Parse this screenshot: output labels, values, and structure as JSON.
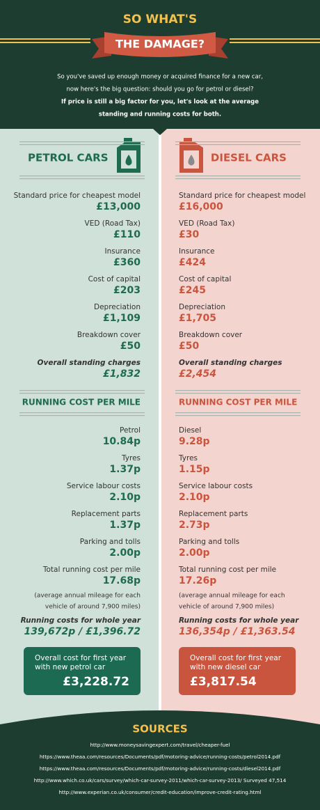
{
  "header": {
    "title_top": "SO WHAT'S",
    "title_banner": "THE DAMAGE?",
    "intro": [
      "So you've saved up enough money or acquired finance for a new car,",
      "now here's the big question: should you go for petrol or diesel?",
      "If price is still a big factor for you, let's look at the average",
      "standing and running costs for both."
    ]
  },
  "columns": [
    {
      "title": "PETROL CARS",
      "standing": [
        {
          "label": "Standard price for cheapest model",
          "value": "£13,000"
        },
        {
          "label": "VED (Road Tax)",
          "value": "£110"
        },
        {
          "label": "Insurance",
          "value": "£360"
        },
        {
          "label": "Cost of capital",
          "value": "£203"
        },
        {
          "label": "Depreciation",
          "value": "£1,109"
        },
        {
          "label": "Breakdown cover",
          "value": "£50"
        }
      ],
      "standing_total": {
        "label": "Overall standing charges",
        "value": "£1,832"
      },
      "running_title": "RUNNING COST PER MILE",
      "running": [
        {
          "label": "Petrol",
          "value": "10.84p"
        },
        {
          "label": "Tyres",
          "value": "1.37p"
        },
        {
          "label": "Service labour costs",
          "value": "2.10p"
        },
        {
          "label": "Replacement parts",
          "value": "1.37p"
        },
        {
          "label": "Parking and tolls",
          "value": "2.00p"
        },
        {
          "label": "Total running cost per mile",
          "value": "17.68p"
        }
      ],
      "note": [
        "(average annual mileage for each",
        "vehicle of around 7,900 miles)"
      ],
      "annual": {
        "label": "Running costs for whole year",
        "value": "139,672p / £1,396.72"
      },
      "overall": {
        "label": [
          "Overall cost for first year",
          "with new petrol car"
        ],
        "value": "£3,228.72"
      }
    },
    {
      "title": "DIESEL CARS",
      "standing": [
        {
          "label": "Standard price for cheapest model",
          "value": "£16,000"
        },
        {
          "label": "VED (Road Tax)",
          "value": "£30"
        },
        {
          "label": "Insurance",
          "value": "£424"
        },
        {
          "label": "Cost of capital",
          "value": "£245"
        },
        {
          "label": "Depreciation",
          "value": "£1,705"
        },
        {
          "label": "Breakdown cover",
          "value": "£50"
        }
      ],
      "standing_total": {
        "label": "Overall standing charges",
        "value": "£2,454"
      },
      "running_title": "RUNNING COST PER MILE",
      "running": [
        {
          "label": "Diesel",
          "value": "9.28p"
        },
        {
          "label": "Tyres",
          "value": "1.15p"
        },
        {
          "label": "Service labour costs",
          "value": "2.10p"
        },
        {
          "label": "Replacement parts",
          "value": "2.73p"
        },
        {
          "label": "Parking and tolls",
          "value": "2.00p"
        },
        {
          "label": "Total running cost per mile",
          "value": "17.26p"
        }
      ],
      "note": [
        "(average annual mileage for each",
        "vehicle of around 7,900 miles)"
      ],
      "annual": {
        "label": "Running costs for whole year",
        "value": "136,354p / £1,363.54"
      },
      "overall": {
        "label": [
          "Overall cost for first year",
          "with new diesel car"
        ],
        "value": "£3,817.54"
      }
    }
  ],
  "sources": {
    "title": "SOURCES",
    "links": [
      "http://www.moneysavingexpert.com/travel/cheaper-fuel",
      "https://www.theaa.com/resources/Documents/pdf/motoring-advice/running-costs/petrol2014.pdf",
      "https://www.theaa.com/resources/Documents/pdf/motoring-advice/running-costs/diesel2014.pdf",
      "http://www.which.co.uk/cars/survey/which-car-survey-2011/which-car-survey-2013/ Surveyed 47,514",
      "http://www.experian.co.uk/consumer/credit-education/improve-credit-rating.html"
    ]
  }
}
